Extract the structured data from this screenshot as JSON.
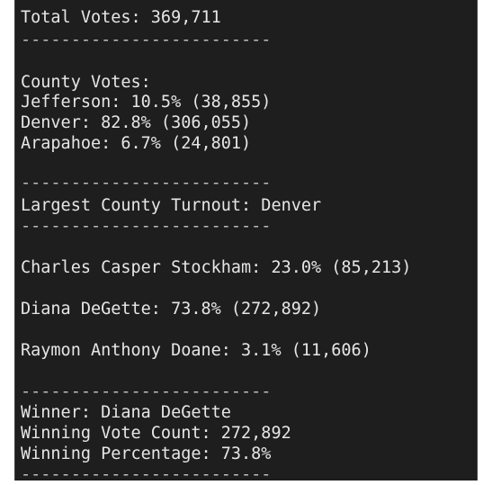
{
  "output": {
    "total_votes": "Total Votes: 369,711",
    "separator": "-------------------------",
    "county_header": "County Votes:",
    "counties": [
      "Jefferson: 10.5% (38,855)",
      "Denver: 82.8% (306,055)",
      "Arapahoe: 6.7% (24,801)"
    ],
    "largest_county": "Largest County Turnout: Denver",
    "candidates": [
      "Charles Casper Stockham: 23.0% (85,213)",
      "Diana DeGette: 73.8% (272,892)",
      "Raymon Anthony Doane: 3.1% (11,606)"
    ],
    "winner": "Winner: Diana DeGette",
    "winning_vote_count": "Winning Vote Count: 272,892",
    "winning_percentage": "Winning Percentage: 73.8%"
  }
}
